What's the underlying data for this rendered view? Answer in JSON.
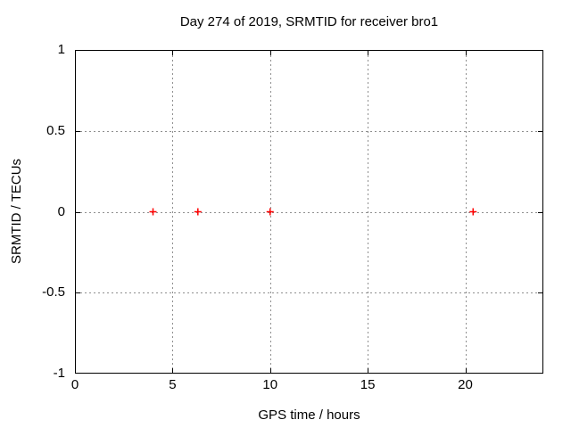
{
  "chart_data": {
    "type": "scatter",
    "title": "Day 274 of 2019, SRMTID for receiver bro1",
    "xlabel": "GPS time / hours",
    "ylabel": "SRMTID / TECUs",
    "xlim": [
      0,
      24
    ],
    "ylim": [
      -1,
      1
    ],
    "xticks": [
      {
        "v": 0,
        "label": "0"
      },
      {
        "v": 5,
        "label": "5"
      },
      {
        "v": 10,
        "label": "10"
      },
      {
        "v": 15,
        "label": "15"
      },
      {
        "v": 20,
        "label": "20"
      }
    ],
    "yticks": [
      {
        "v": -1,
        "label": "-1"
      },
      {
        "v": -0.5,
        "label": "-0.5"
      },
      {
        "v": 0,
        "label": "0"
      },
      {
        "v": 0.5,
        "label": "0.5"
      },
      {
        "v": 1,
        "label": "1"
      }
    ],
    "grid": true,
    "legend_position": "none",
    "marker_style": "plus",
    "points": [
      {
        "x": 4.0,
        "y": 0.0
      },
      {
        "x": 6.3,
        "y": 0.0
      },
      {
        "x": 10.0,
        "y": 0.0
      },
      {
        "x": 20.4,
        "y": 0.0
      }
    ],
    "colors": {
      "marker": "#ff0000",
      "grid": "#8f8f8f",
      "axis": "#000000",
      "background": "#ffffff"
    }
  }
}
